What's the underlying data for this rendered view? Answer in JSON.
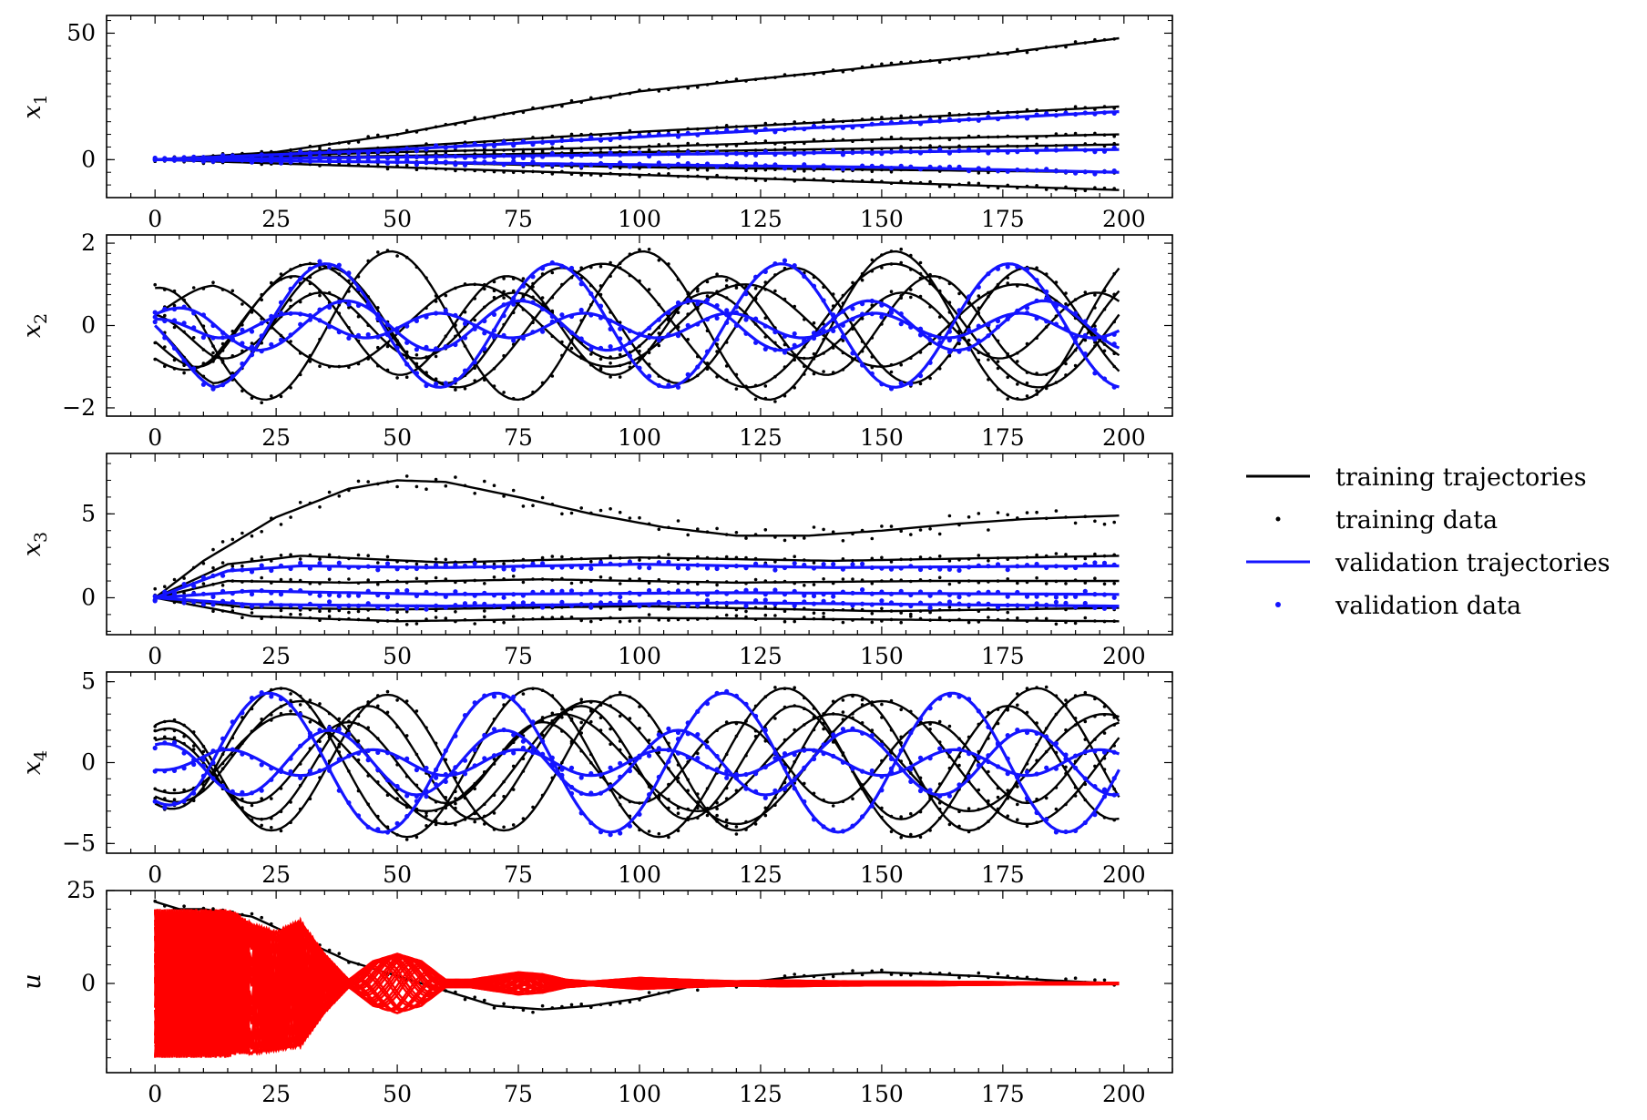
{
  "colors": {
    "training": "#000000",
    "validation": "#1414ff",
    "control": "#ff0000",
    "axes": "#000000",
    "background": "#ffffff"
  },
  "legend": {
    "placement": "right-center",
    "entries": [
      {
        "label": "training trajectories",
        "style": "line",
        "color": "#000000"
      },
      {
        "label": "training data",
        "style": "dot",
        "color": "#000000"
      },
      {
        "label": "validation trajectories",
        "style": "line",
        "color": "#1414ff"
      },
      {
        "label": "validation data",
        "style": "dot",
        "color": "#1414ff"
      }
    ]
  },
  "chart_data": [
    {
      "type": "line",
      "ylabel_main": "x",
      "ylabel_sub": "1",
      "xlim": [
        -10,
        210
      ],
      "ylim": [
        -15,
        57
      ],
      "xticks": [
        0,
        25,
        50,
        75,
        100,
        125,
        150,
        175,
        200
      ],
      "yticks": [
        {
          "value": 0,
          "label": "0"
        },
        {
          "value": 50,
          "label": "50"
        }
      ],
      "grid": false,
      "series": [
        {
          "group": "training",
          "x": [
            0,
            25,
            50,
            75,
            100,
            125,
            150,
            175,
            199
          ],
          "y": [
            0,
            3,
            10,
            19,
            27,
            32,
            37,
            42,
            48
          ]
        },
        {
          "group": "training",
          "x": [
            0,
            50,
            100,
            150,
            199
          ],
          "y": [
            0,
            5,
            11,
            16,
            21
          ]
        },
        {
          "group": "training",
          "x": [
            0,
            50,
            100,
            150,
            199
          ],
          "y": [
            0,
            3,
            5,
            8,
            10
          ]
        },
        {
          "group": "training",
          "x": [
            0,
            50,
            100,
            150,
            199
          ],
          "y": [
            0,
            1.5,
            3,
            4.5,
            6
          ]
        },
        {
          "group": "training",
          "x": [
            0,
            50,
            100,
            150,
            199
          ],
          "y": [
            0,
            -1,
            -3,
            -4,
            -5
          ]
        },
        {
          "group": "training",
          "x": [
            0,
            50,
            100,
            150,
            199
          ],
          "y": [
            0,
            -3,
            -6,
            -9,
            -12
          ]
        },
        {
          "group": "validation",
          "x": [
            0,
            50,
            100,
            150,
            199
          ],
          "y": [
            0,
            4,
            9,
            14,
            19
          ]
        },
        {
          "group": "validation",
          "x": [
            0,
            50,
            100,
            150,
            199
          ],
          "y": [
            0,
            1,
            2,
            3,
            4
          ]
        },
        {
          "group": "validation",
          "x": [
            0,
            50,
            100,
            150,
            199
          ],
          "y": [
            0,
            -1,
            -2,
            -3,
            -5
          ]
        }
      ]
    },
    {
      "type": "line",
      "ylabel_main": "x",
      "ylabel_sub": "2",
      "xlim": [
        -10,
        210
      ],
      "ylim": [
        -2.2,
        2.2
      ],
      "xticks": [
        0,
        25,
        50,
        75,
        100,
        125,
        150,
        175,
        200
      ],
      "yticks": [
        {
          "value": -2,
          "label": "−2"
        },
        {
          "value": 0,
          "label": "0"
        },
        {
          "value": 2,
          "label": "2"
        }
      ],
      "grid": false,
      "series": [
        {
          "group": "training",
          "kind": "sine",
          "amp": 1.4,
          "period": 48,
          "phase": 1.57,
          "decay": 0
        },
        {
          "group": "training",
          "kind": "sine",
          "amp": 1.8,
          "period": 52,
          "phase": 0.4,
          "decay": 0
        },
        {
          "group": "training",
          "kind": "sine",
          "amp": 1.2,
          "period": 44,
          "phase": 2.2,
          "decay": 0
        },
        {
          "group": "training",
          "kind": "sine",
          "amp": 1.0,
          "period": 56,
          "phase": -1.1,
          "decay": 0
        },
        {
          "group": "training",
          "kind": "sine",
          "amp": 0.8,
          "period": 40,
          "phase": 0.9,
          "decay": 0
        },
        {
          "group": "training",
          "kind": "sine",
          "amp": 1.5,
          "period": 60,
          "phase": 2.9,
          "decay": 0
        },
        {
          "group": "validation",
          "kind": "sine",
          "amp": 1.5,
          "period": 47,
          "phase": 1.57,
          "decay": 0
        },
        {
          "group": "validation",
          "kind": "sine",
          "amp": 0.6,
          "period": 36,
          "phase": -0.6,
          "decay": 0
        },
        {
          "group": "validation",
          "kind": "sine",
          "amp": 0.3,
          "period": 30,
          "phase": 0.3,
          "decay": 0
        }
      ]
    },
    {
      "type": "line",
      "ylabel_main": "x",
      "ylabel_sub": "3",
      "xlim": [
        -10,
        210
      ],
      "ylim": [
        -2.2,
        8.6
      ],
      "xticks": [
        0,
        25,
        50,
        75,
        100,
        125,
        150,
        175,
        200
      ],
      "yticks": [
        {
          "value": 0,
          "label": "0"
        },
        {
          "value": 5,
          "label": "5"
        }
      ],
      "grid": false,
      "series": [
        {
          "group": "training",
          "x": [
            0,
            10,
            25,
            40,
            50,
            60,
            75,
            90,
            105,
            120,
            135,
            150,
            165,
            180,
            199
          ],
          "y": [
            0,
            2.2,
            4.8,
            6.5,
            7.0,
            6.9,
            6.0,
            5.0,
            4.2,
            3.7,
            3.7,
            4.0,
            4.4,
            4.7,
            4.9
          ]
        },
        {
          "group": "training",
          "x": [
            0,
            15,
            30,
            60,
            100,
            140,
            199
          ],
          "y": [
            0,
            2.0,
            2.5,
            2.1,
            2.4,
            2.2,
            2.5
          ]
        },
        {
          "group": "training",
          "x": [
            0,
            15,
            40,
            80,
            120,
            160,
            199
          ],
          "y": [
            0,
            1.0,
            0.9,
            1.1,
            0.9,
            1.0,
            1.0
          ]
        },
        {
          "group": "training",
          "x": [
            0,
            20,
            50,
            100,
            150,
            199
          ],
          "y": [
            0,
            -1.1,
            -1.4,
            -1.2,
            -1.3,
            -1.4
          ]
        },
        {
          "group": "training",
          "x": [
            0,
            20,
            50,
            100,
            150,
            199
          ],
          "y": [
            0,
            -0.6,
            -0.7,
            -0.5,
            -0.8,
            -0.6
          ]
        },
        {
          "group": "validation",
          "x": [
            0,
            15,
            30,
            60,
            100,
            140,
            199
          ],
          "y": [
            0,
            1.6,
            1.9,
            1.8,
            2.0,
            1.8,
            1.9
          ]
        },
        {
          "group": "validation",
          "x": [
            0,
            20,
            60,
            120,
            199
          ],
          "y": [
            0,
            0.4,
            0.2,
            0.3,
            0.2
          ]
        },
        {
          "group": "validation",
          "x": [
            0,
            20,
            60,
            120,
            199
          ],
          "y": [
            0,
            -0.4,
            -0.5,
            -0.3,
            -0.5
          ]
        }
      ]
    },
    {
      "type": "line",
      "ylabel_main": "x",
      "ylabel_sub": "4",
      "xlim": [
        -10,
        210
      ],
      "ylim": [
        -5.6,
        5.6
      ],
      "xticks": [
        0,
        25,
        50,
        75,
        100,
        125,
        150,
        175,
        200
      ],
      "yticks": [
        {
          "value": -5,
          "label": "−5"
        },
        {
          "value": 0,
          "label": "0"
        },
        {
          "value": 5,
          "label": "5"
        }
      ],
      "grid": false,
      "series": [
        {
          "group": "training",
          "kind": "sine",
          "amp": 4.2,
          "period": 48,
          "phase": 0,
          "decay": 0
        },
        {
          "group": "training",
          "kind": "sine",
          "amp": 4.6,
          "period": 52,
          "phase": 3.14,
          "decay": 0
        },
        {
          "group": "training",
          "kind": "sine",
          "amp": 3.5,
          "period": 44,
          "phase": 0,
          "decay": 0
        },
        {
          "group": "training",
          "kind": "sine",
          "amp": 3.0,
          "period": 56,
          "phase": 3.14,
          "decay": 0
        },
        {
          "group": "training",
          "kind": "sine",
          "amp": 2.5,
          "period": 40,
          "phase": 0,
          "decay": 0
        },
        {
          "group": "training",
          "kind": "sine",
          "amp": 3.8,
          "period": 60,
          "phase": 3.14,
          "decay": 0
        },
        {
          "group": "validation",
          "kind": "sine",
          "amp": 4.3,
          "period": 47,
          "phase": 3.14,
          "decay": 0
        },
        {
          "group": "validation",
          "kind": "sine",
          "amp": 2.0,
          "period": 36,
          "phase": 0,
          "decay": 0
        },
        {
          "group": "validation",
          "kind": "sine",
          "amp": 0.8,
          "period": 30,
          "phase": 3.14,
          "decay": 0
        }
      ]
    },
    {
      "type": "line",
      "ylabel_main": "u",
      "ylabel_sub": "",
      "xlim": [
        -10,
        210
      ],
      "ylim": [
        -24,
        25
      ],
      "xticks": [
        0,
        25,
        50,
        75,
        100,
        125,
        150,
        175,
        200
      ],
      "yticks": [
        {
          "value": 0,
          "label": "0"
        },
        {
          "value": 25,
          "label": "25"
        }
      ],
      "grid": false,
      "series": [
        {
          "group": "training",
          "x": [
            0,
            5,
            10,
            20,
            30,
            40,
            50,
            60,
            70,
            80,
            90,
            100,
            110,
            120,
            130,
            140,
            150,
            160,
            170,
            180,
            190,
            199
          ],
          "y": [
            22,
            20,
            20,
            18,
            12,
            6,
            2,
            -2,
            -6,
            -7,
            -6,
            -4,
            -1,
            0,
            1.5,
            2.5,
            3,
            2.5,
            2,
            1.2,
            0.5,
            0
          ]
        },
        {
          "group": "control",
          "kind": "envelope",
          "x": [
            0,
            5,
            10,
            15,
            17,
            20,
            25,
            30,
            35,
            40,
            45,
            50,
            55,
            60,
            65,
            70,
            75,
            80,
            85,
            90,
            95,
            100,
            110,
            120,
            130,
            140,
            160,
            180,
            199
          ],
          "upper": [
            20,
            20,
            20,
            20,
            19,
            16,
            14,
            17,
            8,
            1,
            6,
            8,
            6,
            1,
            1,
            2,
            3,
            2.5,
            1,
            0.5,
            1,
            1.5,
            1,
            0.6,
            0.8,
            0.6,
            0.5,
            0.3,
            0.2
          ],
          "lower": [
            -20,
            -20,
            -20,
            -20,
            -19,
            -19,
            -18,
            -17,
            -8,
            -1,
            -6,
            -8,
            -6,
            -1,
            -1,
            -2,
            -3,
            -2.5,
            -1,
            -0.5,
            -1,
            -1.5,
            -1,
            -0.6,
            -0.8,
            -0.6,
            -0.5,
            -0.3,
            -0.2
          ]
        }
      ]
    }
  ]
}
